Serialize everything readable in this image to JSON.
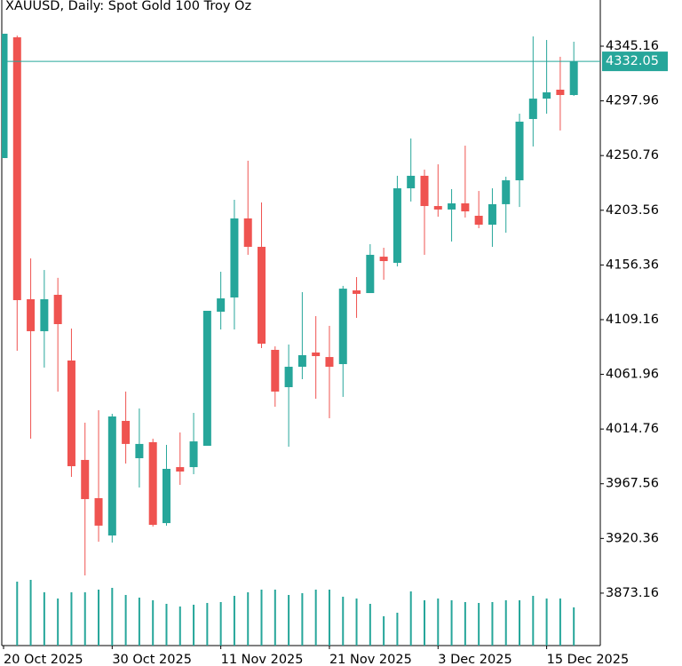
{
  "chart_data": {
    "type": "candlestick",
    "title": "XAUUSD, Daily:  Spot Gold 100 Troy Oz",
    "categories": [
      "20 Oct 2025",
      null,
      null,
      null,
      null,
      null,
      null,
      null,
      "30 Oct 2025",
      null,
      null,
      null,
      null,
      null,
      null,
      null,
      "11 Nov 2025",
      null,
      null,
      null,
      null,
      null,
      null,
      null,
      "21 Nov 2025",
      null,
      null,
      null,
      null,
      null,
      null,
      null,
      "3 Dec 2025",
      null,
      null,
      null,
      null,
      null,
      null,
      null,
      "15 Dec 2025",
      null,
      null
    ],
    "open": [
      4248.6,
      4352.8,
      4126.8,
      4099.2,
      4130.6,
      4073.9,
      3988.1,
      3955.1,
      3922.9,
      4021.8,
      3989.6,
      4003.4,
      3933.6,
      3981.9,
      3981.9,
      4000.3,
      4116.0,
      4128.3,
      4196.5,
      4172.0,
      4083.1,
      4050.9,
      4068.5,
      4080.8,
      4076.9,
      4070.8,
      4134.4,
      4132.1,
      4163.5,
      4158.2,
      4222.5,
      4233.3,
      4207.2,
      4204.2,
      4209.5,
      4198.8,
      4191.1,
      4208.8,
      4229.4,
      4282.3,
      4299.9,
      4307.6,
      4303.0
    ],
    "high": [
      4355.9,
      4354.3,
      4162.0,
      4152.0,
      4145.2,
      4101.5,
      4020.2,
      4031.0,
      4027.9,
      4047.1,
      4032.5,
      4006.4,
      4001.1,
      4011.8,
      4028.7,
      4116.8,
      4150.5,
      4212.6,
      4246.3,
      4210.3,
      4086.1,
      4087.7,
      4132.9,
      4112.2,
      4103.8,
      4138.3,
      4145.9,
      4174.3,
      4171.2,
      4233.3,
      4265.5,
      4238.6,
      4243.2,
      4221.8,
      4259.3,
      4220.2,
      4222.5,
      4232.5,
      4286.9,
      4353.6,
      4350.5,
      4336.0,
      4349.0
    ],
    "low": [
      4248.6,
      4082.3,
      4006.4,
      4067.8,
      4047.1,
      3973.5,
      3888.4,
      3917.6,
      3916.8,
      3985.0,
      3964.3,
      3930.6,
      3931.4,
      3966.6,
      3975.8,
      4000.3,
      4100.7,
      4100.7,
      4165.1,
      4084.6,
      4034.0,
      3999.5,
      4057.8,
      4040.9,
      4024.1,
      4042.5,
      4110.7,
      4132.1,
      4143.6,
      4155.1,
      4211.1,
      4165.1,
      4198.0,
      4176.6,
      4197.3,
      4188.1,
      4172.0,
      4184.2,
      4206.4,
      4258.6,
      4286.9,
      4272.4,
      4302.2
    ],
    "close": [
      4355.9,
      4126.0,
      4099.2,
      4126.8,
      4105.3,
      3982.7,
      3954.3,
      3931.4,
      4025.6,
      4001.9,
      4001.9,
      3932.1,
      3980.4,
      3978.1,
      4004.1,
      4116.8,
      4127.5,
      4196.5,
      4172.0,
      4088.4,
      4047.1,
      4068.5,
      4078.5,
      4077.7,
      4068.5,
      4135.9,
      4131.4,
      4165.1,
      4159.7,
      4222.5,
      4233.3,
      4207.2,
      4204.2,
      4209.5,
      4202.6,
      4191.1,
      4208.8,
      4229.4,
      4280.0,
      4299.9,
      4305.3,
      4303.0,
      4332.05
    ],
    "volume": [
      null,
      72,
      74,
      60,
      53,
      60,
      60,
      63,
      65,
      57,
      54,
      51,
      47,
      44,
      46,
      48,
      49,
      56,
      60,
      63,
      63,
      57,
      59,
      63,
      63,
      55,
      53,
      47,
      33,
      37,
      61,
      51,
      53,
      51,
      49,
      48,
      49,
      51,
      51,
      56,
      53,
      53,
      43
    ],
    "volume_lim": [
      0,
      100
    ],
    "up_color": "#26a69a",
    "down_color": "#ef5350",
    "last_price": 4332.05,
    "ylim": [
      3827.9,
      4385.0
    ],
    "yticks": [
      3873.16,
      3920.36,
      3967.56,
      4014.76,
      4061.96,
      4109.16,
      4156.36,
      4203.56,
      4250.76,
      4297.96,
      4345.16
    ],
    "grid": false
  }
}
